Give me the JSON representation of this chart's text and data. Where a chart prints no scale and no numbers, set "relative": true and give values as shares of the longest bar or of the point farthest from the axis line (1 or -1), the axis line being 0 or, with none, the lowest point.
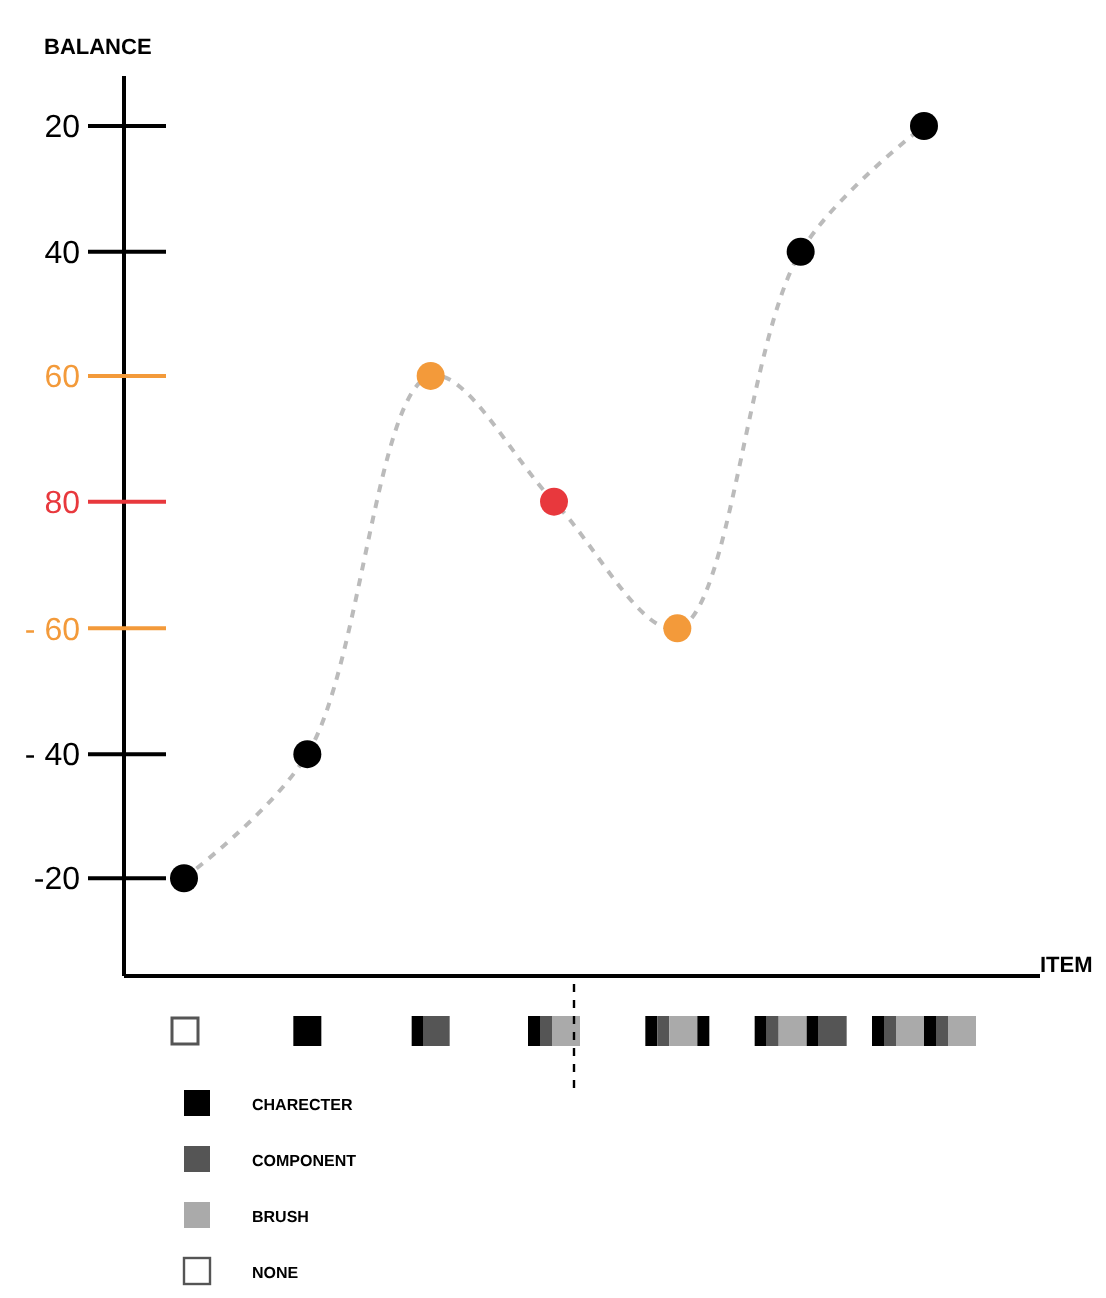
{
  "chart_data": {
    "type": "line",
    "ylabel": "BALANCE",
    "xlabel": "ITEM",
    "categories": [
      null,
      null,
      null,
      null,
      null,
      null,
      null
    ],
    "relative": true,
    "series": [
      {
        "color": "#bbbbbb",
        "colors": [
          "#000000",
          "#000000",
          "#f39a3a",
          "#e8383d",
          "#f39a3a",
          "#000000",
          "#000000"
        ],
        "values": [
          0.115,
          0.261,
          0.706,
          0.558,
          0.409,
          0.852,
          1
        ]
      }
    ],
    "marker": "circle",
    "line_style": "dashed",
    "annotations": [
      "-20",
      "- 40",
      "- 60",
      "80",
      "60",
      "40",
      "20",
      "CHARECTER",
      "COMPONENT",
      "BRUSH",
      "NONE"
    ]
  }
}
